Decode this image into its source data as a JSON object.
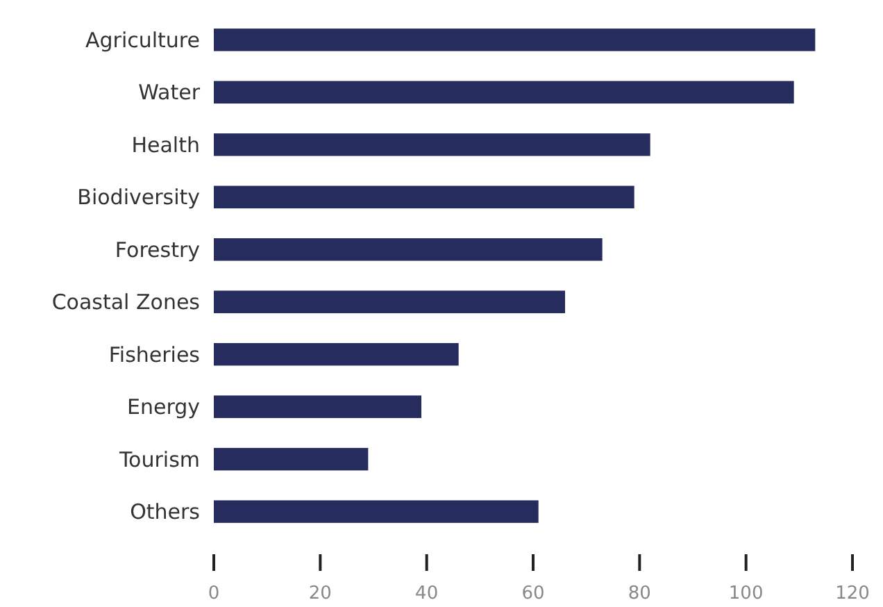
{
  "chart_data": {
    "type": "bar",
    "orientation": "horizontal",
    "categories": [
      "Agriculture",
      "Water",
      "Health",
      "Biodiversity",
      "Forestry",
      "Coastal Zones",
      "Fisheries",
      "Energy",
      "Tourism",
      "Others"
    ],
    "values": [
      113,
      109,
      82,
      79,
      73,
      66,
      46,
      39,
      29,
      61
    ],
    "color": "#272c5e",
    "xlim": [
      0,
      120
    ],
    "xticks": [
      0,
      20,
      40,
      60,
      80,
      100,
      120
    ]
  }
}
